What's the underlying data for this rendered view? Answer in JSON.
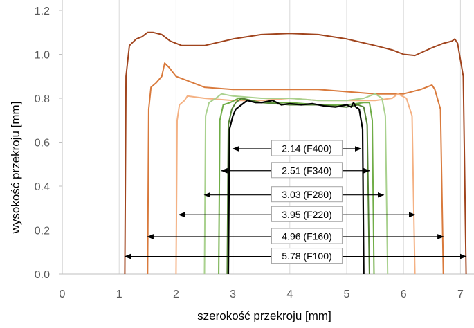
{
  "chart_data": {
    "type": "line",
    "title": "",
    "xlabel": "szerokość przekroju [mm]",
    "ylabel": "wysokość przekroju [mm]",
    "xlim": [
      0,
      7.2
    ],
    "ylim": [
      0,
      1.25
    ],
    "x_ticks": [
      "0",
      "1",
      "2",
      "3",
      "4",
      "5",
      "6",
      "7"
    ],
    "y_ticks": [
      "0.0",
      "0.2",
      "0.4",
      "0.6",
      "0.8",
      "1.0",
      "1.2"
    ],
    "grid": "vertical",
    "series": [
      {
        "color": "#a0441d",
        "points": [
          [
            1.1,
            0.0
          ],
          [
            1.12,
            0.9
          ],
          [
            1.18,
            1.04
          ],
          [
            1.3,
            1.07
          ],
          [
            1.4,
            1.08
          ],
          [
            1.45,
            1.09
          ],
          [
            1.5,
            1.1
          ],
          [
            1.6,
            1.1
          ],
          [
            1.75,
            1.09
          ],
          [
            1.9,
            1.06
          ],
          [
            2.1,
            1.04
          ],
          [
            2.5,
            1.04
          ],
          [
            3.0,
            1.07
          ],
          [
            3.5,
            1.09
          ],
          [
            4.0,
            1.095
          ],
          [
            4.5,
            1.09
          ],
          [
            5.0,
            1.07
          ],
          [
            5.5,
            1.04
          ],
          [
            5.8,
            1.02
          ],
          [
            6.0,
            1.0
          ],
          [
            6.2,
            0.995
          ],
          [
            6.5,
            1.03
          ],
          [
            6.7,
            1.05
          ],
          [
            6.85,
            1.06
          ],
          [
            6.9,
            1.07
          ],
          [
            6.95,
            1.05
          ],
          [
            7.05,
            0.9
          ],
          [
            7.1,
            0.0
          ]
        ]
      },
      {
        "color": "#d97a3c",
        "points": [
          [
            1.5,
            0.0
          ],
          [
            1.52,
            0.75
          ],
          [
            1.56,
            0.85
          ],
          [
            1.65,
            0.87
          ],
          [
            1.75,
            0.9
          ],
          [
            1.8,
            0.96
          ],
          [
            1.88,
            0.94
          ],
          [
            2.0,
            0.9
          ],
          [
            2.2,
            0.88
          ],
          [
            2.5,
            0.85
          ],
          [
            3.0,
            0.84
          ],
          [
            3.5,
            0.84
          ],
          [
            4.0,
            0.84
          ],
          [
            4.5,
            0.84
          ],
          [
            5.0,
            0.83
          ],
          [
            5.5,
            0.82
          ],
          [
            6.0,
            0.82
          ],
          [
            6.3,
            0.84
          ],
          [
            6.5,
            0.86
          ],
          [
            6.55,
            0.84
          ],
          [
            6.65,
            0.75
          ],
          [
            6.7,
            0.0
          ]
        ]
      },
      {
        "color": "#f4b183",
        "points": [
          [
            2.0,
            0.0
          ],
          [
            2.02,
            0.7
          ],
          [
            2.06,
            0.77
          ],
          [
            2.15,
            0.79
          ],
          [
            2.2,
            0.81
          ],
          [
            2.5,
            0.8
          ],
          [
            3.0,
            0.79
          ],
          [
            3.5,
            0.79
          ],
          [
            4.0,
            0.8
          ],
          [
            4.5,
            0.79
          ],
          [
            5.0,
            0.79
          ],
          [
            5.5,
            0.79
          ],
          [
            5.8,
            0.8
          ],
          [
            5.9,
            0.82
          ],
          [
            6.05,
            0.8
          ],
          [
            6.15,
            0.72
          ],
          [
            6.2,
            0.0
          ]
        ]
      },
      {
        "color": "#a9d18e",
        "points": [
          [
            2.5,
            0.0
          ],
          [
            2.52,
            0.72
          ],
          [
            2.58,
            0.78
          ],
          [
            2.7,
            0.8
          ],
          [
            2.8,
            0.82
          ],
          [
            3.0,
            0.81
          ],
          [
            3.5,
            0.8
          ],
          [
            4.0,
            0.8
          ],
          [
            4.5,
            0.79
          ],
          [
            5.0,
            0.79
          ],
          [
            5.3,
            0.8
          ],
          [
            5.5,
            0.82
          ],
          [
            5.62,
            0.8
          ],
          [
            5.68,
            0.72
          ],
          [
            5.72,
            0.0
          ]
        ]
      },
      {
        "color": "#70ad47",
        "points": [
          [
            2.75,
            0.0
          ],
          [
            2.77,
            0.7
          ],
          [
            2.83,
            0.77
          ],
          [
            2.95,
            0.78
          ],
          [
            3.1,
            0.8
          ],
          [
            3.5,
            0.78
          ],
          [
            4.0,
            0.78
          ],
          [
            4.5,
            0.77
          ],
          [
            5.0,
            0.77
          ],
          [
            5.3,
            0.78
          ],
          [
            5.4,
            0.78
          ],
          [
            5.45,
            0.7
          ],
          [
            5.48,
            0.0
          ]
        ]
      },
      {
        "color": "#548235",
        "points": [
          [
            2.9,
            0.0
          ],
          [
            2.92,
            0.68
          ],
          [
            2.98,
            0.75
          ],
          [
            3.05,
            0.78
          ],
          [
            3.15,
            0.8
          ],
          [
            3.5,
            0.78
          ],
          [
            4.0,
            0.77
          ],
          [
            4.5,
            0.77
          ],
          [
            5.0,
            0.76
          ],
          [
            5.2,
            0.77
          ],
          [
            5.3,
            0.76
          ],
          [
            5.36,
            0.68
          ],
          [
            5.4,
            0.0
          ]
        ]
      },
      {
        "color": "#000000",
        "points": [
          [
            2.92,
            0.0
          ],
          [
            2.94,
            0.66
          ],
          [
            3.0,
            0.72
          ],
          [
            3.05,
            0.75
          ],
          [
            3.15,
            0.77
          ],
          [
            3.25,
            0.79
          ],
          [
            3.4,
            0.78
          ],
          [
            3.5,
            0.78
          ],
          [
            3.7,
            0.79
          ],
          [
            3.85,
            0.77
          ],
          [
            4.0,
            0.775
          ],
          [
            4.2,
            0.77
          ],
          [
            4.4,
            0.775
          ],
          [
            4.6,
            0.765
          ],
          [
            4.8,
            0.76
          ],
          [
            5.0,
            0.77
          ],
          [
            5.08,
            0.76
          ],
          [
            5.12,
            0.78
          ],
          [
            5.16,
            0.76
          ],
          [
            5.22,
            0.75
          ],
          [
            5.28,
            0.66
          ],
          [
            5.3,
            0.0
          ]
        ]
      }
    ],
    "annotations": [
      {
        "label": "2.14 (F400)",
        "x_start": 3.0,
        "x_end": 5.25,
        "y": 0.57
      },
      {
        "label": "2.51 (F340)",
        "x_start": 2.8,
        "x_end": 5.4,
        "y": 0.47
      },
      {
        "label": "3.03 (F280)",
        "x_start": 2.5,
        "x_end": 5.65,
        "y": 0.36
      },
      {
        "label": "3.95 (F220)",
        "x_start": 2.05,
        "x_end": 6.2,
        "y": 0.27
      },
      {
        "label": "4.96 (F160)",
        "x_start": 1.5,
        "x_end": 6.7,
        "y": 0.17
      },
      {
        "label": "5.78 (F100)",
        "x_start": 1.1,
        "x_end": 7.1,
        "y": 0.08
      }
    ]
  }
}
